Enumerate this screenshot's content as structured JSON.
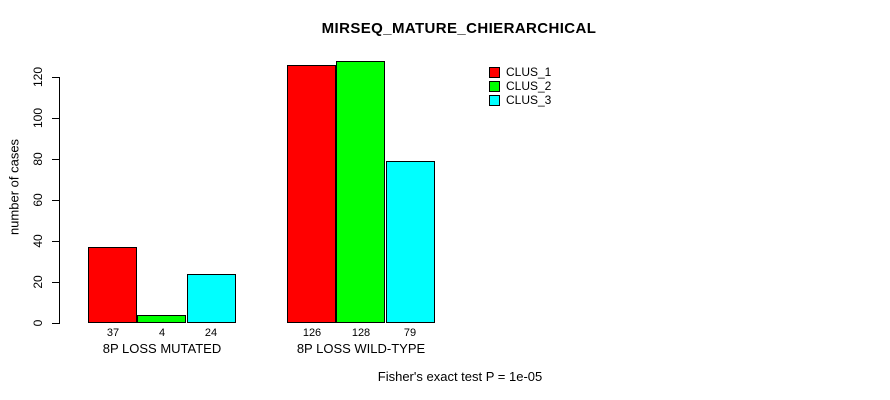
{
  "chart_data": {
    "type": "bar",
    "title": "MIRSEQ_MATURE_CHIERARCHICAL",
    "xlabel": "",
    "ylabel": "number of cases",
    "categories": [
      "8P LOSS MUTATED",
      "8P LOSS WILD-TYPE"
    ],
    "series": [
      {
        "name": "CLUS_1",
        "color": "#ff0000",
        "values": [
          37,
          126
        ]
      },
      {
        "name": "CLUS_2",
        "color": "#00ff00",
        "values": [
          4,
          128
        ]
      },
      {
        "name": "CLUS_3",
        "color": "#00ffff",
        "values": [
          24,
          79
        ]
      }
    ],
    "ylim": [
      0,
      120
    ],
    "yticks": [
      0,
      20,
      40,
      60,
      80,
      100,
      120
    ],
    "bar_value_labels": [
      [
        37,
        4,
        24
      ],
      [
        126,
        128,
        79
      ]
    ],
    "grid": false,
    "legend_position": "top-right",
    "annotation": "Fisher's exact test P = 1e-05"
  },
  "legend": {
    "items": [
      {
        "label": "CLUS_1",
        "color": "#ff0000"
      },
      {
        "label": "CLUS_2",
        "color": "#00ff00"
      },
      {
        "label": "CLUS_3",
        "color": "#00ffff"
      }
    ]
  }
}
